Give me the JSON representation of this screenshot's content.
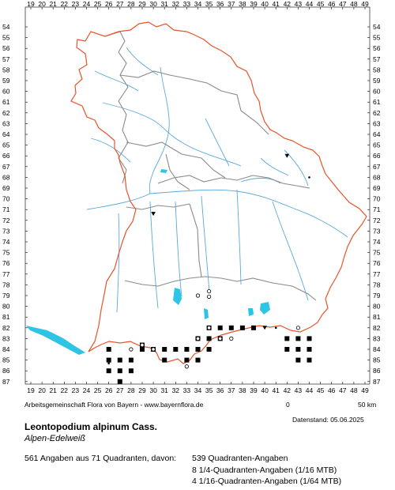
{
  "map": {
    "x_ticks": [
      "19",
      "20",
      "21",
      "22",
      "23",
      "24",
      "25",
      "26",
      "27",
      "28",
      "29",
      "30",
      "31",
      "32",
      "33",
      "34",
      "35",
      "36",
      "37",
      "38",
      "39",
      "40",
      "41",
      "42",
      "43",
      "44",
      "45",
      "46",
      "47",
      "48",
      "49"
    ],
    "y_ticks": [
      "54",
      "55",
      "56",
      "57",
      "58",
      "59",
      "60",
      "61",
      "62",
      "63",
      "64",
      "65",
      "66",
      "67",
      "68",
      "69",
      "70",
      "71",
      "72",
      "73",
      "74",
      "75",
      "76",
      "77",
      "78",
      "79",
      "80",
      "81",
      "82",
      "83",
      "84",
      "85",
      "86",
      "87"
    ],
    "colors": {
      "border": "#e8532a",
      "districts": "#8a8a8a",
      "rivers": "#5aa8dc",
      "lakes": "#2ec4e6",
      "markers": "#000000"
    },
    "legend_markers": {
      "filled_square": "quadrant record",
      "open_circle": "1/4-quadrant record",
      "small_dot": "1/16-quadrant record",
      "triangle": "1/64-quadrant record"
    }
  },
  "footer": {
    "credit": "Arbeitsgemeinschaft Flora von Bayern - www.bayernflora.de",
    "scale_start": "0",
    "scale_end": "50 km",
    "date": "Datenstand: 05.06.2025",
    "species_scientific": "Leontopodium alpinum Cass.",
    "species_common": "Alpen-Edelweiß",
    "summary": "561 Angaben aus 71 Quadranten, davon:",
    "quadrant_count": "539 Quadranten-Angaben",
    "quarter_count": "8 1/4-Quadranten-Angaben (1/16 MTB)",
    "sixteenth_count": "4 1/16-Quadranten-Angaben (1/64 MTB)"
  }
}
